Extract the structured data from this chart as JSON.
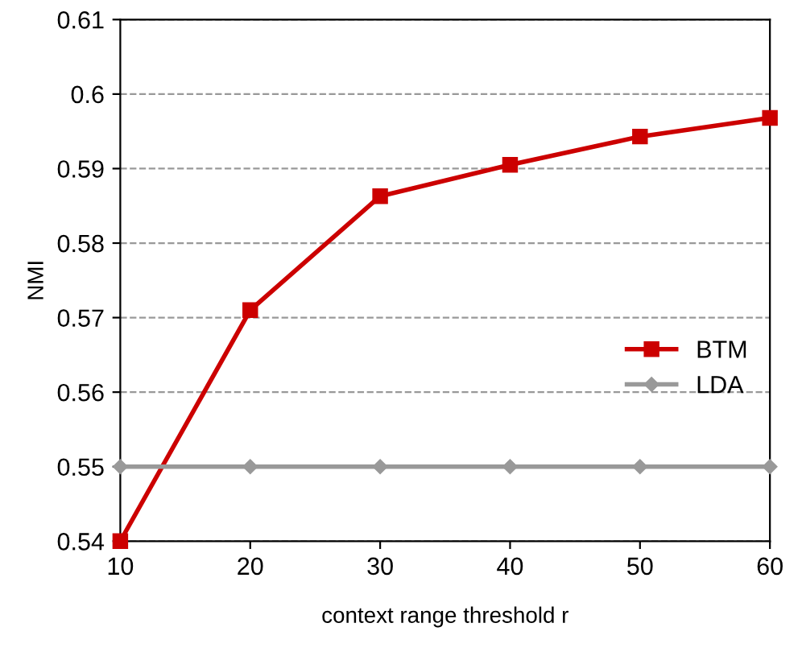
{
  "chart_data": {
    "type": "line",
    "xlabel": "context range threshold r",
    "ylabel": "NMI",
    "x": [
      10,
      20,
      30,
      40,
      50,
      60
    ],
    "series": [
      {
        "name": "BTM",
        "color": "#cc0000",
        "marker": "square",
        "values": [
          0.54,
          0.571,
          0.5863,
          0.5905,
          0.5943,
          0.5968
        ]
      },
      {
        "name": "LDA",
        "color": "#999999",
        "marker": "diamond",
        "values": [
          0.55,
          0.55,
          0.55,
          0.55,
          0.55,
          0.55
        ]
      }
    ],
    "xlim": [
      10,
      60
    ],
    "ylim": [
      0.54,
      0.61
    ],
    "xticks": [
      10,
      20,
      30,
      40,
      50,
      60
    ],
    "yticks": [
      {
        "value": 0.54,
        "label": "0.54"
      },
      {
        "value": 0.55,
        "label": "0.55"
      },
      {
        "value": 0.56,
        "label": "0.56"
      },
      {
        "value": 0.57,
        "label": "0.57"
      },
      {
        "value": 0.58,
        "label": "0.58"
      },
      {
        "value": 0.59,
        "label": "0.59"
      },
      {
        "value": 0.6,
        "label": "0.6"
      },
      {
        "value": 0.61,
        "label": "0.61"
      }
    ],
    "grid": "y",
    "legend": "right",
    "line_style": "solid"
  }
}
